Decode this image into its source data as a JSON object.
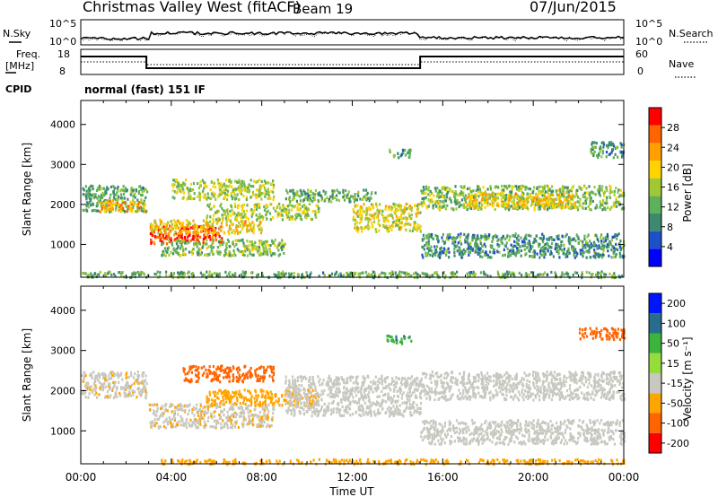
{
  "header": {
    "station": "Christmas Valley West (fitACF)",
    "beam": "Beam 19",
    "date": "07/Jun/2015"
  },
  "sky_panel": {
    "left_label": "N.Sky",
    "right_label": "N.Search",
    "tick_top": "10^5",
    "tick_bottom": "10^0"
  },
  "freq_panel": {
    "label_line1": "Freq.",
    "label_line2": "[MHz]",
    "tick_top": "18",
    "tick_bottom": "8",
    "right_tick_top": "60",
    "right_tick_bottom": "0",
    "right_label": "Nave"
  },
  "cpid": {
    "label": "CPID",
    "value": "normal (fast) 151 IF"
  },
  "colors": {
    "power": [
      "#0000ff",
      "#2050c8",
      "#3c8a6e",
      "#5fb05a",
      "#a0c832",
      "#ffd200",
      "#ffa000",
      "#ff6400",
      "#ff0000"
    ],
    "velocity": [
      "#ff0000",
      "#ff6400",
      "#ffa500",
      "#c8c8c0",
      "#96dc3c",
      "#3cb43c",
      "#286e8c",
      "#0014ff"
    ]
  },
  "chart_data": [
    {
      "type": "heatmap",
      "name": "power",
      "ylabel": "Slant Range [km]",
      "ylim": [
        180,
        4600
      ],
      "yticks": [
        "1000",
        "2000",
        "3000",
        "4000"
      ],
      "xlim_hours": [
        0,
        24
      ],
      "colorbar": {
        "label": "Power [dB]",
        "ticks": [
          "4",
          "8",
          "12",
          "16",
          "20",
          "24",
          "28"
        ],
        "range": [
          0,
          32
        ]
      },
      "echo_bands": [
        {
          "x": [
            0,
            2.9
          ],
          "y": [
            1850,
            2500
          ],
          "level": 12
        },
        {
          "x": [
            0.8,
            2.9
          ],
          "y": [
            1850,
            2150
          ],
          "level": 22
        },
        {
          "x": [
            3.0,
            6.2
          ],
          "y": [
            1050,
            1500
          ],
          "level": 28
        },
        {
          "x": [
            3.0,
            8.0
          ],
          "y": [
            1300,
            1650
          ],
          "level": 20
        },
        {
          "x": [
            5.5,
            10.5
          ],
          "y": [
            1650,
            2050
          ],
          "level": 16
        },
        {
          "x": [
            9.0,
            13.0
          ],
          "y": [
            2100,
            2400
          ],
          "level": 12
        },
        {
          "x": [
            12.0,
            15.0
          ],
          "y": [
            1350,
            2050
          ],
          "level": 18
        },
        {
          "x": [
            15.0,
            24.0
          ],
          "y": [
            1900,
            2500
          ],
          "level": 14
        },
        {
          "x": [
            17.0,
            22.0
          ],
          "y": [
            1950,
            2300
          ],
          "level": 20
        },
        {
          "x": [
            15.0,
            24.0
          ],
          "y": [
            700,
            1300
          ],
          "level": 10
        },
        {
          "x": [
            3.5,
            9.0
          ],
          "y": [
            750,
            1150
          ],
          "level": 14
        },
        {
          "x": [
            4.0,
            8.5
          ],
          "y": [
            2150,
            2650
          ],
          "level": 16
        },
        {
          "x": [
            13.5,
            14.6
          ],
          "y": [
            3200,
            3400
          ],
          "level": 10
        },
        {
          "x": [
            22.5,
            24.0
          ],
          "y": [
            3200,
            3600
          ],
          "level": 10
        },
        {
          "x": [
            0,
            24
          ],
          "y": [
            200,
            350
          ],
          "level": 12
        }
      ]
    },
    {
      "type": "heatmap",
      "name": "velocity",
      "ylabel": "Slant Range [km]",
      "ylim": [
        180,
        4600
      ],
      "yticks": [
        "1000",
        "2000",
        "3000",
        "4000"
      ],
      "xlim_hours": [
        0,
        24
      ],
      "xticks": [
        "00:00",
        "04:00",
        "08:00",
        "12:00",
        "16:00",
        "20:00",
        "00:00"
      ],
      "xlabel": "Time UT",
      "colorbar": {
        "label": "Velocity [m s⁻¹]",
        "ticks": [
          "200",
          "100",
          "50",
          "15",
          "-15",
          "-50",
          "-100",
          "-200"
        ]
      },
      "echo_bands": [
        {
          "x": [
            0,
            2.9
          ],
          "y": [
            1850,
            2500
          ],
          "level": -10
        },
        {
          "x": [
            3.0,
            8.5
          ],
          "y": [
            1100,
            1700
          ],
          "level": -10
        },
        {
          "x": [
            5.5,
            10.5
          ],
          "y": [
            1650,
            2050
          ],
          "level": -40
        },
        {
          "x": [
            9.0,
            15.0
          ],
          "y": [
            1400,
            2400
          ],
          "level": 0
        },
        {
          "x": [
            15.0,
            24.0
          ],
          "y": [
            1800,
            2500
          ],
          "level": 0
        },
        {
          "x": [
            15.0,
            24.0
          ],
          "y": [
            700,
            1300
          ],
          "level": 0
        },
        {
          "x": [
            4.5,
            8.5
          ],
          "y": [
            2250,
            2650
          ],
          "level": -150
        },
        {
          "x": [
            13.5,
            14.6
          ],
          "y": [
            3200,
            3400
          ],
          "level": 40
        },
        {
          "x": [
            22.0,
            24.0
          ],
          "y": [
            3300,
            3600
          ],
          "level": -150
        },
        {
          "x": [
            3.5,
            24
          ],
          "y": [
            200,
            320
          ],
          "level": -40
        }
      ]
    }
  ]
}
